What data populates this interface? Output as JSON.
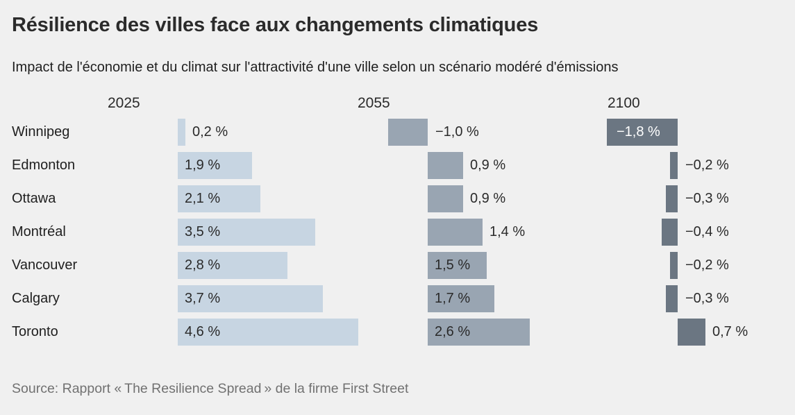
{
  "header": {
    "title": "Résilience des villes face aux changements climatiques",
    "subtitle": "Impact de l'économie et du climat sur l'attractivité d'une ville selon un scénario modéré d'émissions"
  },
  "footer": {
    "source": "Source: Rapport « The Resilience Spread » de la firme First Street"
  },
  "colors": {
    "background": "#f0f0f0",
    "title_text": "#2b2b2b",
    "body_text": "#1f1f1f",
    "source_text": "#717171",
    "bar_2025": "#c7d5e2",
    "bar_2055": "#99a5b2",
    "bar_2100": "#6b7682"
  },
  "chart_data": {
    "type": "bar",
    "orientation": "horizontal",
    "title": "Résilience des villes face aux changements climatiques",
    "subtitle": "Impact de l'économie et du climat sur l'attractivité d'une ville selon un scénario modéré d'émissions",
    "value_unit": "%",
    "decimal_style": "fr-comma",
    "grid": false,
    "legend_position": "column-headers",
    "categories": [
      "Winnipeg",
      "Edmonton",
      "Ottawa",
      "Montréal",
      "Vancouver",
      "Calgary",
      "Toronto"
    ],
    "series": [
      {
        "name": "2025",
        "color": "#c7d5e2",
        "inside_label_color": "#2a2a2a",
        "values": [
          0.2,
          1.9,
          2.1,
          3.5,
          2.8,
          3.7,
          4.6
        ],
        "labels": [
          "0,2 %",
          "1,9 %",
          "2,1 %",
          "3,5 %",
          "2,8 %",
          "3,7 %",
          "4,6 %"
        ],
        "label_inside": [
          false,
          true,
          true,
          true,
          true,
          true,
          true
        ]
      },
      {
        "name": "2055",
        "color": "#99a5b2",
        "inside_label_color": "#2a2a2a",
        "values": [
          -1.0,
          0.9,
          0.9,
          1.4,
          1.5,
          1.7,
          2.6
        ],
        "labels": [
          "−1,0 %",
          "0,9 %",
          "0,9 %",
          "1,4 %",
          "1,5 %",
          "1,7 %",
          "2,6 %"
        ],
        "label_inside": [
          false,
          false,
          false,
          false,
          true,
          true,
          true
        ]
      },
      {
        "name": "2100",
        "color": "#6b7682",
        "inside_label_color": "#ffffff",
        "values": [
          -1.8,
          -0.2,
          -0.3,
          -0.4,
          -0.2,
          -0.3,
          0.7
        ],
        "labels": [
          "−1,8 %",
          "−0,2 %",
          "−0,3 %",
          "−0,4 %",
          "−0,2 %",
          "−0,3 %",
          "0,7 %"
        ],
        "label_inside": [
          true,
          false,
          false,
          false,
          false,
          false,
          false
        ]
      }
    ],
    "xlim_per_column": [
      -2.0,
      5.0
    ]
  }
}
